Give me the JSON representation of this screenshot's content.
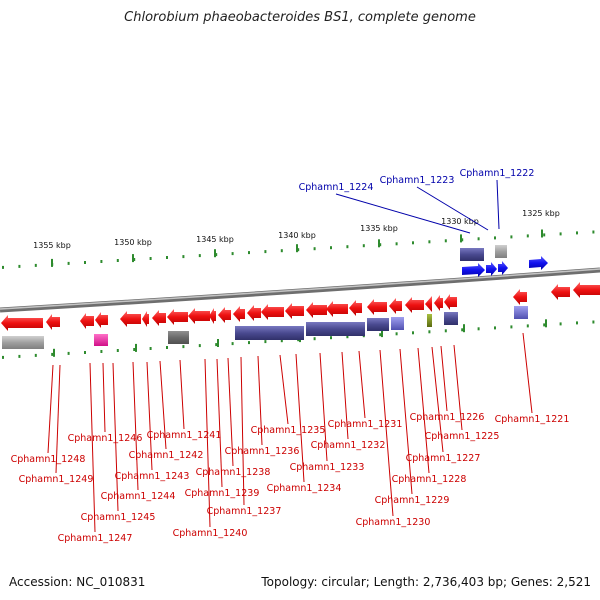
{
  "title": "Chlorobium phaeobacteroides BS1, complete genome",
  "footer": {
    "accession": "Accession: NC_010831",
    "topology": "Topology: circular; Length: 2,736,403 bp; Genes: 2,521"
  },
  "scale_labels": [
    "1355 kbp",
    "1350 kbp",
    "1345 kbp",
    "1340 kbp",
    "1335 kbp",
    "1330 kbp",
    "1325 kbp"
  ],
  "top_labels": [
    "Cphamn1_1224",
    "Cphamn1_1223",
    "Cphamn1_1222"
  ],
  "bottom_labels": [
    "Cphamn1_1248",
    "Cphamn1_1249",
    "Cphamn1_1246",
    "Cphamn1_1247",
    "Cphamn1_1245",
    "Cphamn1_1244",
    "Cphamn1_1243",
    "Cphamn1_1242",
    "Cphamn1_1241",
    "Cphamn1_1240",
    "Cphamn1_1239",
    "Cphamn1_1238",
    "Cphamn1_1237",
    "Cphamn1_1236",
    "Cphamn1_1235",
    "Cphamn1_1234",
    "Cphamn1_1233",
    "Cphamn1_1232",
    "Cphamn1_1231",
    "Cphamn1_1230",
    "Cphamn1_1229",
    "Cphamn1_1228",
    "Cphamn1_1227",
    "Cphamn1_1226",
    "Cphamn1_1225",
    "Cphamn1_1221"
  ],
  "colors": {
    "forward_gene": "#1a1aee",
    "reverse_gene": "#ee1a1a",
    "label_red": "#cc0000",
    "label_blue": "#0000aa",
    "tick_green": "#2e8b2e",
    "backbone": "#888888",
    "slate_box": "#4a4a90",
    "gray_box": "#909090",
    "magenta_box": "#e8209a",
    "olive_box": "#7a8c20",
    "lavender_box": "#7070d0"
  }
}
